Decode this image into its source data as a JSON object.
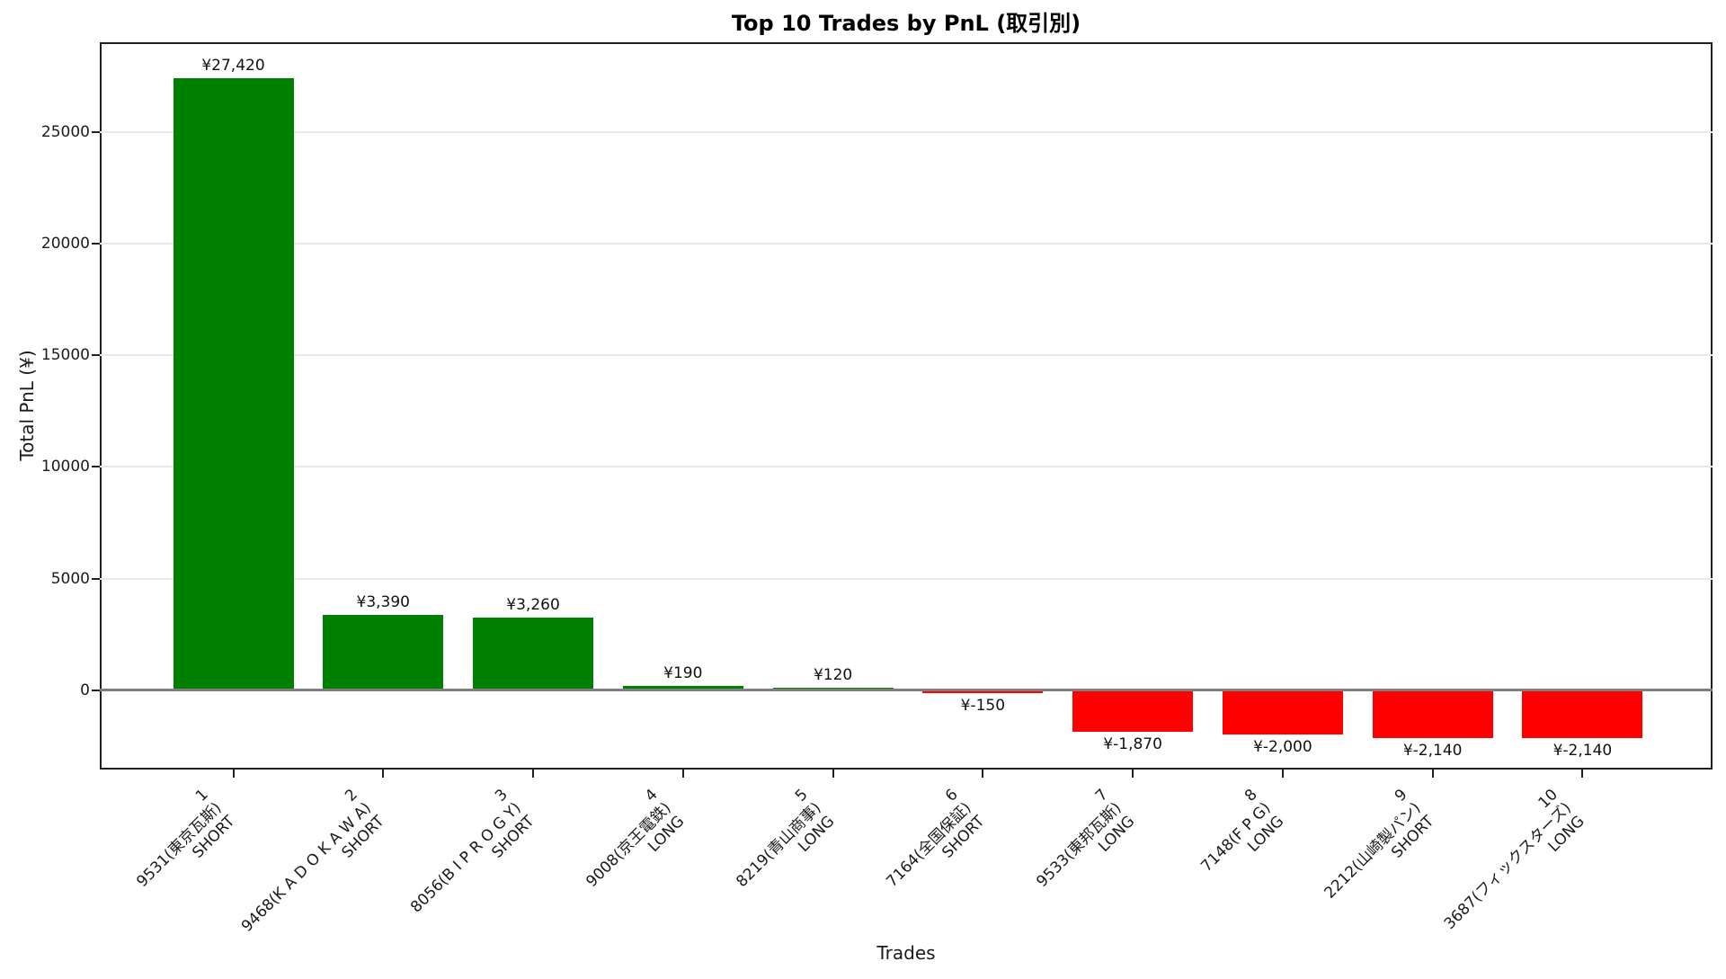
{
  "chart_data": {
    "type": "bar",
    "title": "Top 10 Trades by PnL (取引別)",
    "xlabel": "Trades",
    "ylabel": "Total PnL (¥)",
    "ylim": [
      -3560,
      29040
    ],
    "yticks": [
      {
        "value": 0,
        "label": "0"
      },
      {
        "value": 5000,
        "label": "5000"
      },
      {
        "value": 10000,
        "label": "10000"
      },
      {
        "value": 15000,
        "label": "15000"
      },
      {
        "value": 20000,
        "label": "20000"
      },
      {
        "value": 25000,
        "label": "25000"
      }
    ],
    "grid": "horizontal",
    "legend": "none",
    "zero_line_color": "#7f7f7f",
    "positive_color": "#008000",
    "negative_color": "#ff0000",
    "bars": [
      {
        "rank": "1",
        "name": "9531(東京瓦斯)",
        "side": "SHORT",
        "value": 27420,
        "label": "¥27,420",
        "color": "#008000"
      },
      {
        "rank": "2",
        "name": "9468(K A D O K A W A)",
        "side": "SHORT",
        "value": 3390,
        "label": "¥3,390",
        "color": "#008000"
      },
      {
        "rank": "3",
        "name": "8056(B I P R O G Y)",
        "side": "SHORT",
        "value": 3260,
        "label": "¥3,260",
        "color": "#008000"
      },
      {
        "rank": "4",
        "name": "9008(京王電鉄)",
        "side": "LONG",
        "value": 190,
        "label": "¥190",
        "color": "#008000"
      },
      {
        "rank": "5",
        "name": "8219(青山商事)",
        "side": "LONG",
        "value": 120,
        "label": "¥120",
        "color": "#008000"
      },
      {
        "rank": "6",
        "name": "7164(全国保証)",
        "side": "SHORT",
        "value": -150,
        "label": "¥-150",
        "color": "#ff0000"
      },
      {
        "rank": "7",
        "name": "9533(東邦瓦斯)",
        "side": "LONG",
        "value": -1870,
        "label": "¥-1,870",
        "color": "#ff0000"
      },
      {
        "rank": "8",
        "name": "7148(F P G)",
        "side": "LONG",
        "value": -2000,
        "label": "¥-2,000",
        "color": "#ff0000"
      },
      {
        "rank": "9",
        "name": "2212(山崎製パン)",
        "side": "SHORT",
        "value": -2140,
        "label": "¥-2,140",
        "color": "#ff0000"
      },
      {
        "rank": "10",
        "name": "3687(フィックスターズ)",
        "side": "LONG",
        "value": -2140,
        "label": "¥-2,140",
        "color": "#ff0000"
      }
    ]
  }
}
